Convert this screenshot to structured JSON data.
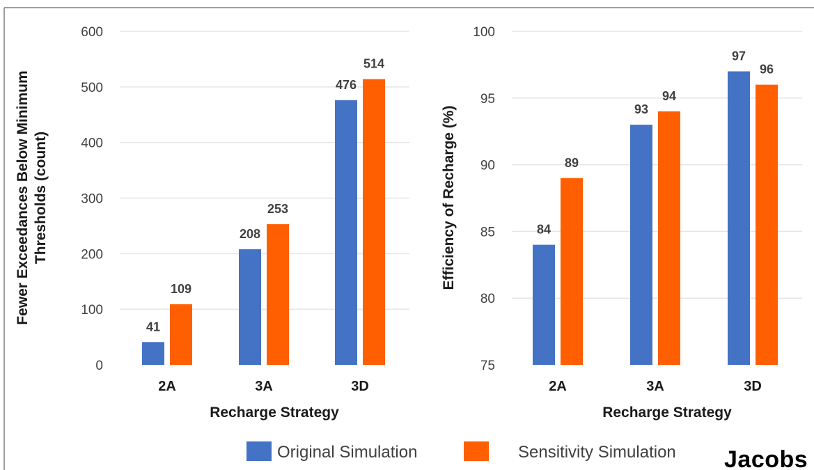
{
  "colors": {
    "original": "#4472C4",
    "sensitivity": "#FF5F00",
    "grid": "#E5E5E5",
    "border": "#7F7F7F"
  },
  "legend": {
    "items": [
      {
        "label": "Original Simulation",
        "color": "#4472C4"
      },
      {
        "label": "Sensitivity Simulation",
        "color": "#FF5F00"
      }
    ],
    "placement": "bottom"
  },
  "logo": {
    "text": "Jacobs"
  },
  "chart_data": [
    {
      "type": "bar",
      "categories": [
        "2A",
        "3A",
        "3D"
      ],
      "series": [
        {
          "name": "Original Simulation",
          "values": [
            41,
            208,
            476
          ]
        },
        {
          "name": "Sensitivity Simulation",
          "values": [
            109,
            253,
            514
          ]
        }
      ],
      "xlabel": "Recharge Strategy",
      "ylabel_lines": [
        "Fewer Exceedances Below Minimum",
        "Thresholds (count)"
      ],
      "ylim": [
        0,
        600
      ],
      "yticks": [
        0,
        100,
        200,
        300,
        400,
        500,
        600
      ],
      "grid": true
    },
    {
      "type": "bar",
      "categories": [
        "2A",
        "3A",
        "3D"
      ],
      "series": [
        {
          "name": "Original Simulation",
          "values": [
            84,
            93,
            97
          ]
        },
        {
          "name": "Sensitivity Simulation",
          "values": [
            89,
            94,
            96
          ]
        }
      ],
      "xlabel": "Recharge Strategy",
      "ylabel_lines": [
        "Efficiency of Recharge (%)"
      ],
      "ylim": [
        75,
        100
      ],
      "yticks": [
        75,
        80,
        85,
        90,
        95,
        100
      ],
      "grid": true
    }
  ]
}
